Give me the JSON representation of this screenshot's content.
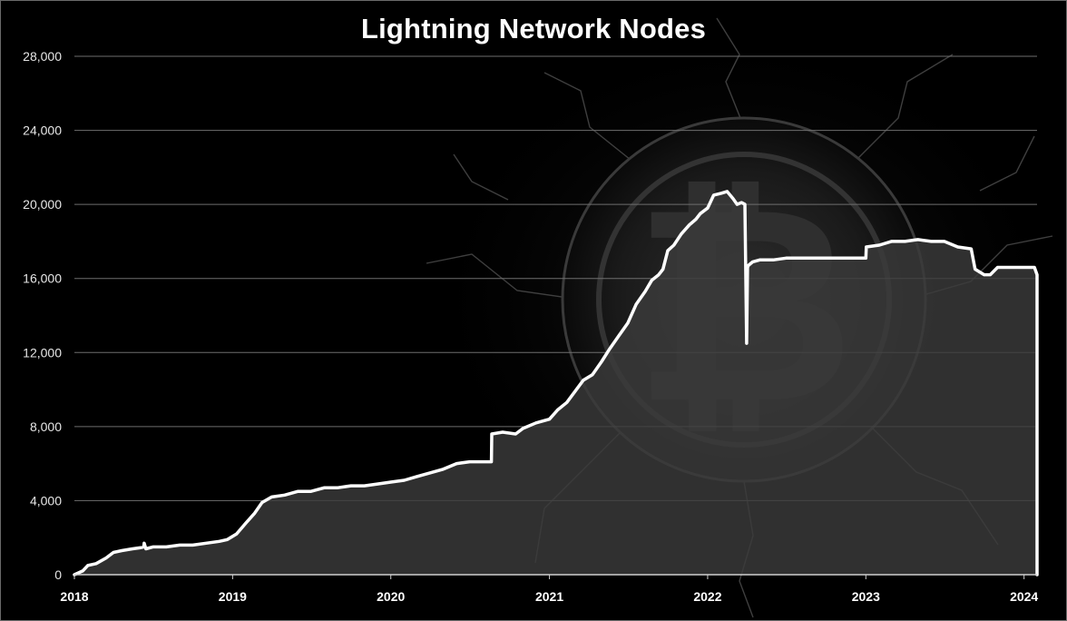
{
  "chart_data": {
    "type": "line",
    "title": "Lightning Network Nodes",
    "xlabel": "",
    "ylabel": "",
    "x_tick_labels": [
      "2018",
      "2019",
      "2020",
      "2021",
      "2022",
      "2023",
      "2024"
    ],
    "y_tick_labels": [
      "0",
      "4,000",
      "8,000",
      "12,000",
      "16,000",
      "20,000",
      "24,000",
      "28,000"
    ],
    "ylim": [
      0,
      28000
    ],
    "xlim": [
      "2018-01-01",
      "2024-01-31"
    ],
    "grid": "horizontal",
    "legend": "none",
    "background": "bitcoin logo with lightning, dark",
    "colors": {
      "line": "#ffffff",
      "area_fill": "#3a3a3a",
      "grid": "#6e6e6e",
      "background": "#000000"
    },
    "series": [
      {
        "x": [
          "2018-01-01",
          "2018-01-20",
          "2018-02-01",
          "2018-02-20",
          "2018-03-15",
          "2018-04-01",
          "2018-04-20",
          "2018-05-15",
          "2018-06-01",
          "2018-06-10",
          "2018-06-11",
          "2018-06-15",
          "2018-07-01",
          "2018-08-01",
          "2018-09-01",
          "2018-10-01",
          "2018-11-01",
          "2018-12-01",
          "2018-12-20",
          "2019-01-10",
          "2019-02-01",
          "2019-02-20",
          "2019-03-10",
          "2019-04-01",
          "2019-05-01",
          "2019-06-01",
          "2019-07-01",
          "2019-08-01",
          "2019-09-01",
          "2019-10-01",
          "2019-11-01",
          "2019-12-01",
          "2020-01-01",
          "2020-02-01",
          "2020-03-01",
          "2020-04-01",
          "2020-05-01",
          "2020-06-01",
          "2020-07-01",
          "2020-08-01",
          "2020-08-20",
          "2020-08-21",
          "2020-09-15",
          "2020-10-15",
          "2020-11-01",
          "2020-12-01",
          "2021-01-01",
          "2021-01-20",
          "2021-02-10",
          "2021-03-01",
          "2021-03-20",
          "2021-04-10",
          "2021-05-01",
          "2021-05-20",
          "2021-06-10",
          "2021-07-01",
          "2021-07-20",
          "2021-08-10",
          "2021-08-25",
          "2021-09-10",
          "2021-09-20",
          "2021-10-01",
          "2021-10-15",
          "2021-11-01",
          "2021-11-20",
          "2021-12-05",
          "2021-12-15",
          "2022-01-01",
          "2022-01-15",
          "2022-02-01",
          "2022-02-15",
          "2022-03-01",
          "2022-03-10",
          "2022-03-20",
          "2022-03-28",
          "2022-04-01",
          "2022-04-03",
          "2022-04-05",
          "2022-04-15",
          "2022-05-01",
          "2022-06-01",
          "2022-07-01",
          "2022-08-01",
          "2022-09-01",
          "2022-10-01",
          "2022-11-01",
          "2022-12-01",
          "2023-01-01",
          "2023-01-02",
          "2023-02-01",
          "2023-03-01",
          "2023-04-01",
          "2023-05-01",
          "2023-06-01",
          "2023-07-01",
          "2023-08-01",
          "2023-09-01",
          "2023-09-10",
          "2023-10-01",
          "2023-10-15",
          "2023-11-01",
          "2023-12-01",
          "2024-01-01",
          "2024-01-25",
          "2024-01-31"
        ],
        "y": [
          0,
          200,
          500,
          600,
          900,
          1200,
          1300,
          1400,
          1450,
          1500,
          1700,
          1400,
          1500,
          1500,
          1600,
          1600,
          1700,
          1800,
          1900,
          2200,
          2800,
          3300,
          3900,
          4200,
          4300,
          4500,
          4500,
          4700,
          4700,
          4800,
          4800,
          4900,
          5000,
          5100,
          5300,
          5500,
          5700,
          6000,
          6100,
          6100,
          6100,
          7600,
          7700,
          7600,
          7900,
          8200,
          8400,
          8900,
          9300,
          9900,
          10500,
          10800,
          11500,
          12200,
          12900,
          13600,
          14600,
          15300,
          15900,
          16200,
          16500,
          17500,
          17800,
          18400,
          18900,
          19200,
          19500,
          19800,
          20500,
          20600,
          20700,
          20300,
          20000,
          20100,
          20000,
          12500,
          16600,
          16700,
          16900,
          17000,
          17000,
          17100,
          17100,
          17100,
          17100,
          17100,
          17100,
          17100,
          17700,
          17800,
          18000,
          18000,
          18100,
          18000,
          18000,
          17700,
          17600,
          16500,
          16200,
          16200,
          16600,
          16600,
          16600,
          16600,
          16200
        ]
      }
    ]
  }
}
